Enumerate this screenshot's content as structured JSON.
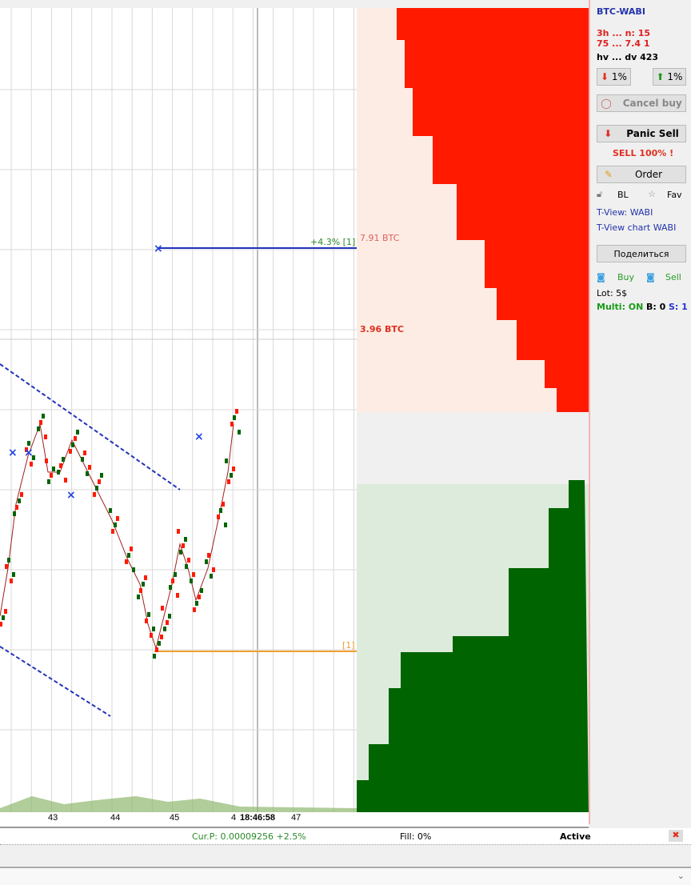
{
  "chart": {
    "x_ticks": [
      "43",
      "44",
      "45",
      "4",
      "47"
    ],
    "time": "18:46:58",
    "sell_order_label": "+4.3%  [1]",
    "sell_order_volume": "7.91 BTC",
    "current_volume": "3.96 BTC",
    "buy_order_label": "[1]"
  },
  "panel": {
    "pair": "BTC-WABI",
    "stat_line1": "3h ... n:   15",
    "stat_line2": "75 ... 7.4  1",
    "stat_line3": "hv ... dv 423",
    "down_btn": "1%",
    "up_btn": "1%",
    "cancel_buy": "Cancel buy",
    "panic_sell": "Panic Sell",
    "sell_100": "SELL 100% !",
    "order": "Order",
    "bl": "BL",
    "fav": "Fav",
    "tview": "T-View: WABI",
    "tview_chart": "T-View chart WABI",
    "share": "Поделиться",
    "buy": "Buy",
    "sell": "Sell",
    "lot": "Lot: 5$",
    "multi": "Multi: ON",
    "b": "B: 0",
    "s": "S: 1"
  },
  "status": {
    "cur_price": "Cur.P: 0.00009256  +2.5%",
    "fill": "Fill: 0%",
    "state": "Active"
  },
  "colors": {
    "ask": "#ff1a00",
    "ask_bg": "#fdece4",
    "bid": "#006400",
    "bid_bg": "#dcebdc",
    "order_line": "#2233bb",
    "buy_line": "#f0a030"
  }
}
